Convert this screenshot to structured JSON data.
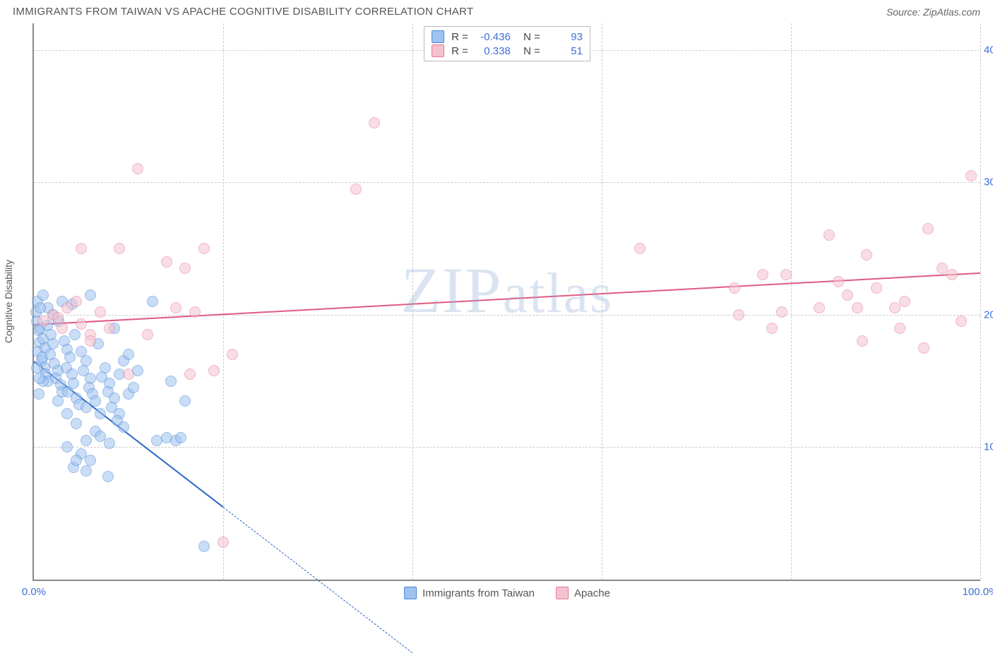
{
  "header": {
    "title": "IMMIGRANTS FROM TAIWAN VS APACHE COGNITIVE DISABILITY CORRELATION CHART",
    "source": "Source: ZipAtlas.com"
  },
  "watermark": "ZIPatlas",
  "chart": {
    "type": "scatter",
    "background_color": "#ffffff",
    "grid_color": "#cccccc",
    "axis_color": "#888888",
    "tick_label_color": "#3b6fd8",
    "tick_fontsize": 15,
    "y_axis_title": "Cognitive Disability",
    "xlim": [
      0,
      100
    ],
    "ylim": [
      0,
      42
    ],
    "x_ticks": [
      0.0,
      100.0
    ],
    "x_tick_labels": [
      "0.0%",
      "100.0%"
    ],
    "x_gridlines": [
      20,
      40,
      60,
      80,
      100
    ],
    "y_ticks": [
      10.0,
      20.0,
      30.0,
      40.0
    ],
    "y_tick_labels": [
      "10.0%",
      "20.0%",
      "30.0%",
      "40.0%"
    ],
    "marker_radius": 8,
    "marker_opacity": 0.55,
    "series": [
      {
        "name": "Immigrants from Taiwan",
        "color_fill": "#9ec3ef",
        "color_stroke": "#4a86d6",
        "R": "-0.436",
        "N": "93",
        "trend": {
          "x1": 0,
          "y1": 16.5,
          "x2": 20,
          "y2": 5.5,
          "color": "#2b66c4",
          "width": 2,
          "dash_extend_to_x": 40
        },
        "points": [
          [
            0.3,
            19.5
          ],
          [
            0.5,
            18.8
          ],
          [
            0.6,
            17.9
          ],
          [
            0.4,
            17.2
          ],
          [
            0.8,
            16.5
          ],
          [
            0.7,
            19.0
          ],
          [
            1.0,
            18.2
          ],
          [
            1.2,
            17.5
          ],
          [
            0.9,
            16.8
          ],
          [
            1.1,
            16.0
          ],
          [
            1.3,
            15.5
          ],
          [
            1.5,
            15.0
          ],
          [
            1.4,
            19.2
          ],
          [
            1.8,
            18.5
          ],
          [
            2.0,
            17.8
          ],
          [
            1.7,
            17.0
          ],
          [
            2.2,
            16.3
          ],
          [
            2.5,
            15.8
          ],
          [
            2.3,
            15.2
          ],
          [
            2.8,
            14.7
          ],
          [
            3.0,
            14.2
          ],
          [
            2.6,
            19.5
          ],
          [
            3.2,
            18.0
          ],
          [
            3.5,
            17.4
          ],
          [
            3.8,
            16.8
          ],
          [
            3.4,
            16.0
          ],
          [
            4.0,
            15.5
          ],
          [
            4.2,
            14.8
          ],
          [
            3.6,
            14.2
          ],
          [
            4.5,
            13.7
          ],
          [
            4.8,
            13.2
          ],
          [
            4.3,
            18.5
          ],
          [
            5.0,
            17.2
          ],
          [
            5.5,
            16.5
          ],
          [
            5.2,
            15.8
          ],
          [
            6.0,
            15.2
          ],
          [
            5.8,
            14.5
          ],
          [
            6.2,
            14.0
          ],
          [
            6.5,
            13.5
          ],
          [
            5.5,
            13.0
          ],
          [
            7.0,
            12.5
          ],
          [
            6.8,
            17.8
          ],
          [
            7.5,
            16.0
          ],
          [
            7.2,
            15.3
          ],
          [
            8.0,
            14.8
          ],
          [
            7.8,
            14.2
          ],
          [
            8.5,
            13.7
          ],
          [
            8.2,
            13.0
          ],
          [
            9.0,
            12.5
          ],
          [
            8.8,
            12.0
          ],
          [
            9.5,
            11.5
          ],
          [
            6.5,
            11.2
          ],
          [
            7.0,
            10.8
          ],
          [
            5.5,
            10.5
          ],
          [
            8.0,
            10.3
          ],
          [
            4.5,
            11.8
          ],
          [
            3.5,
            12.5
          ],
          [
            5.0,
            9.5
          ],
          [
            6.0,
            9.0
          ],
          [
            4.2,
            8.5
          ],
          [
            5.5,
            8.2
          ],
          [
            7.8,
            7.8
          ],
          [
            9.0,
            15.5
          ],
          [
            10.0,
            14.0
          ],
          [
            10.5,
            14.5
          ],
          [
            9.5,
            16.5
          ],
          [
            2.0,
            20.0
          ],
          [
            1.5,
            20.5
          ],
          [
            11.0,
            15.8
          ],
          [
            12.5,
            21.0
          ],
          [
            13.0,
            10.5
          ],
          [
            14.0,
            10.7
          ],
          [
            14.5,
            15.0
          ],
          [
            15.0,
            10.5
          ],
          [
            15.5,
            10.7
          ],
          [
            10.0,
            17.0
          ],
          [
            8.5,
            19.0
          ],
          [
            16.0,
            13.5
          ],
          [
            6.0,
            21.5
          ],
          [
            4.0,
            20.8
          ],
          [
            3.0,
            21.0
          ],
          [
            2.5,
            13.5
          ],
          [
            3.5,
            10.0
          ],
          [
            4.5,
            9.0
          ],
          [
            1.0,
            15.0
          ],
          [
            0.5,
            14.0
          ],
          [
            18.0,
            2.5
          ],
          [
            0.2,
            20.2
          ],
          [
            0.4,
            21.0
          ],
          [
            0.7,
            20.5
          ],
          [
            1.0,
            21.5
          ],
          [
            0.3,
            16.0
          ],
          [
            0.6,
            15.2
          ]
        ]
      },
      {
        "name": "Apache",
        "color_fill": "#f5c2cf",
        "color_stroke": "#e37a98",
        "R": "0.338",
        "N": "51",
        "trend": {
          "x1": 0,
          "y1": 19.3,
          "x2": 100,
          "y2": 23.2,
          "color": "#e05a82",
          "width": 2
        },
        "points": [
          [
            1.0,
            19.5
          ],
          [
            2.0,
            20.0
          ],
          [
            3.0,
            19.0
          ],
          [
            3.5,
            20.5
          ],
          [
            5.0,
            19.3
          ],
          [
            6.0,
            18.5
          ],
          [
            7.0,
            20.2
          ],
          [
            4.5,
            21.0
          ],
          [
            8.0,
            19.0
          ],
          [
            2.5,
            19.8
          ],
          [
            5.0,
            25.0
          ],
          [
            6.0,
            18.0
          ],
          [
            9.0,
            25.0
          ],
          [
            10.0,
            15.5
          ],
          [
            11.0,
            31.0
          ],
          [
            12.0,
            18.5
          ],
          [
            14.0,
            24.0
          ],
          [
            15.0,
            20.5
          ],
          [
            16.0,
            23.5
          ],
          [
            17.0,
            20.2
          ],
          [
            16.5,
            15.5
          ],
          [
            18.0,
            25.0
          ],
          [
            19.0,
            15.8
          ],
          [
            20.0,
            2.8
          ],
          [
            21.0,
            17.0
          ],
          [
            34.0,
            29.5
          ],
          [
            36.0,
            34.5
          ],
          [
            64.0,
            25.0
          ],
          [
            74.0,
            22.0
          ],
          [
            74.5,
            20.0
          ],
          [
            77.0,
            23.0
          ],
          [
            79.0,
            20.2
          ],
          [
            79.5,
            23.0
          ],
          [
            83.0,
            20.5
          ],
          [
            84.0,
            26.0
          ],
          [
            85.0,
            22.5
          ],
          [
            86.0,
            21.5
          ],
          [
            87.0,
            20.5
          ],
          [
            87.5,
            18.0
          ],
          [
            88.0,
            24.5
          ],
          [
            91.0,
            20.5
          ],
          [
            91.5,
            19.0
          ],
          [
            92.0,
            21.0
          ],
          [
            94.0,
            17.5
          ],
          [
            94.5,
            26.5
          ],
          [
            96.0,
            23.5
          ],
          [
            97.0,
            23.0
          ],
          [
            98.0,
            19.5
          ],
          [
            99.0,
            30.5
          ],
          [
            89.0,
            22.0
          ],
          [
            78.0,
            19.0
          ]
        ]
      }
    ],
    "legend": {
      "items": [
        {
          "label": "Immigrants from Taiwan",
          "swatch_fill": "#9ec3ef",
          "swatch_stroke": "#4a86d6"
        },
        {
          "label": "Apache",
          "swatch_fill": "#f5c2cf",
          "swatch_stroke": "#e37a98"
        }
      ]
    }
  }
}
